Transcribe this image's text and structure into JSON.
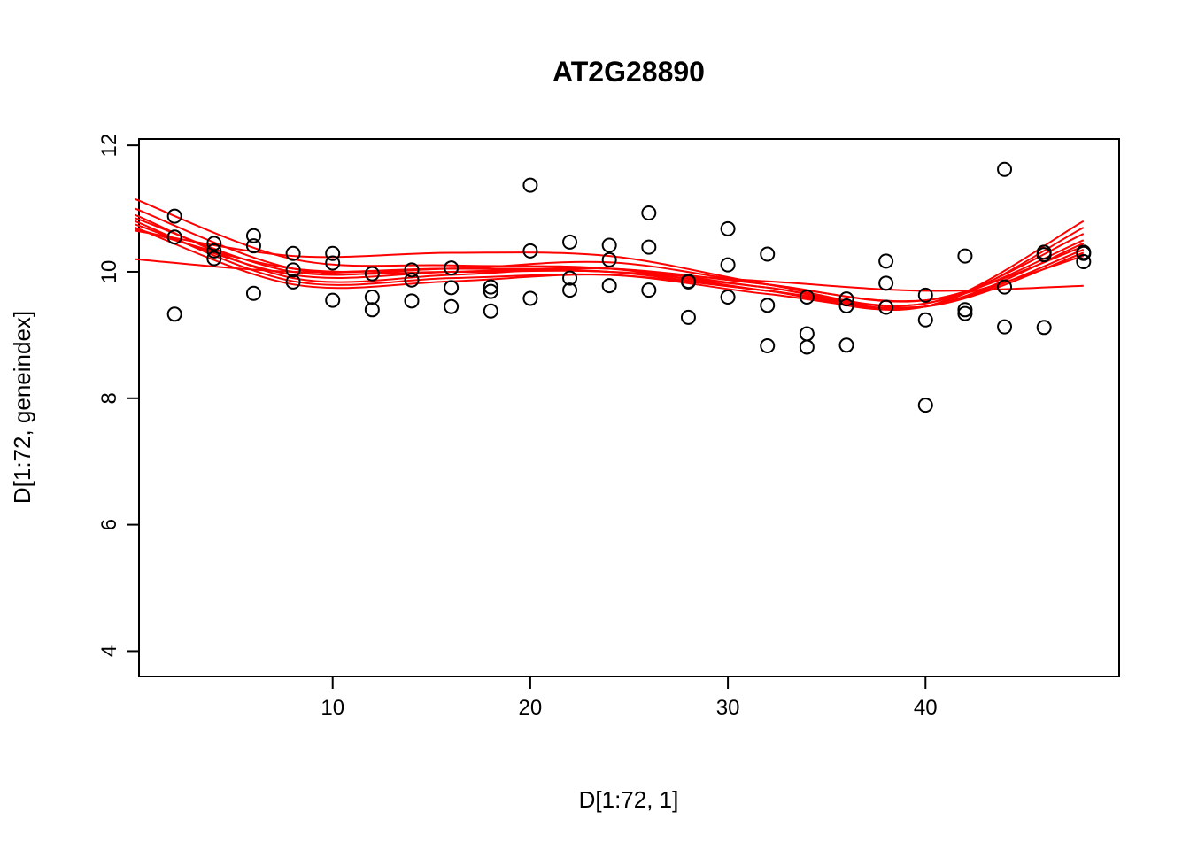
{
  "chart_data": {
    "type": "scatter",
    "title": "AT2G28890",
    "xlabel": "D[1:72, 1]",
    "ylabel": "D[1:72, geneindex]",
    "xlim": [
      0.2,
      49.8
    ],
    "ylim": [
      3.6,
      12.1
    ],
    "xticks": [
      10,
      20,
      30,
      40
    ],
    "yticks": [
      4,
      6,
      8,
      10,
      12
    ],
    "grid": false,
    "legend": "none",
    "colors": {
      "points": "#000000",
      "fits": "#ff0000"
    },
    "points": {
      "x": [
        2,
        2,
        2,
        4,
        4,
        4,
        6,
        6,
        6,
        8,
        8,
        8,
        10,
        10,
        10,
        12,
        12,
        12,
        14,
        14,
        14,
        16,
        16,
        16,
        18,
        18,
        18,
        20,
        20,
        20,
        22,
        22,
        22,
        24,
        24,
        24,
        26,
        26,
        26,
        28,
        28,
        28,
        30,
        30,
        30,
        32,
        32,
        32,
        34,
        34,
        34,
        36,
        36,
        36,
        38,
        38,
        38,
        40,
        40,
        40,
        42,
        42,
        42,
        44,
        44,
        44,
        46,
        46,
        46,
        48,
        48,
        48
      ],
      "y": [
        10.88,
        10.55,
        9.33,
        10.45,
        10.33,
        10.21,
        10.57,
        10.41,
        9.66,
        10.29,
        10.03,
        9.84,
        10.29,
        10.14,
        9.55,
        9.97,
        9.6,
        9.4,
        10.03,
        9.87,
        9.54,
        10.06,
        9.75,
        9.45,
        9.76,
        9.69,
        9.38,
        11.37,
        10.33,
        9.58,
        10.47,
        9.9,
        9.71,
        10.42,
        10.19,
        9.78,
        10.93,
        10.39,
        9.71,
        9.85,
        9.84,
        9.28,
        10.68,
        10.11,
        9.6,
        10.28,
        9.47,
        8.83,
        9.6,
        9.02,
        8.81,
        9.57,
        9.46,
        8.84,
        10.17,
        9.82,
        9.44,
        9.63,
        9.24,
        7.89,
        10.25,
        9.4,
        9.34,
        11.62,
        9.76,
        9.13,
        10.31,
        10.27,
        9.12,
        10.31,
        10.29,
        10.16
      ]
    },
    "fits": [
      {
        "x": [
          0,
          8,
          16,
          24,
          32,
          40,
          48
        ],
        "y": [
          11.15,
          10.2,
          10.1,
          10.05,
          9.7,
          9.45,
          10.8
        ]
      },
      {
        "x": [
          0,
          8,
          16,
          24,
          32,
          40,
          48
        ],
        "y": [
          11.0,
          10.05,
          10.0,
          10.0,
          9.75,
          9.45,
          10.7
        ]
      },
      {
        "x": [
          0,
          8,
          16,
          24,
          32,
          40,
          48
        ],
        "y": [
          10.9,
          9.9,
          9.95,
          10.05,
          9.75,
          9.5,
          10.6
        ]
      },
      {
        "x": [
          0,
          8,
          16,
          24,
          32,
          40,
          48
        ],
        "y": [
          10.85,
          10.0,
          10.05,
          10.0,
          9.7,
          9.5,
          10.5
        ]
      },
      {
        "x": [
          0,
          8,
          16,
          24,
          32,
          40,
          48
        ],
        "y": [
          10.8,
          9.85,
          9.9,
          9.95,
          9.7,
          9.45,
          10.45
        ]
      },
      {
        "x": [
          0,
          8,
          16,
          24,
          32,
          40,
          48
        ],
        "y": [
          10.75,
          9.95,
          10.0,
          10.05,
          9.8,
          9.55,
          10.4
        ]
      },
      {
        "x": [
          0,
          8,
          16,
          24,
          32,
          40,
          48
        ],
        "y": [
          10.7,
          9.8,
          9.85,
          9.95,
          9.65,
          9.45,
          10.35
        ]
      },
      {
        "x": [
          0,
          8,
          16,
          24,
          32,
          40,
          48
        ],
        "y": [
          10.65,
          10.25,
          10.3,
          10.25,
          9.8,
          9.45,
          10.3
        ]
      },
      {
        "x": [
          0,
          8,
          16,
          24,
          32,
          40,
          48
        ],
        "y": [
          10.68,
          10.05,
          10.05,
          10.15,
          9.8,
          9.55,
          10.25
        ]
      },
      {
        "x": [
          0,
          8,
          16,
          24,
          32,
          40,
          48
        ],
        "y": [
          10.2,
          10.0,
          10.05,
          10.0,
          9.85,
          9.7,
          9.78
        ]
      }
    ]
  }
}
